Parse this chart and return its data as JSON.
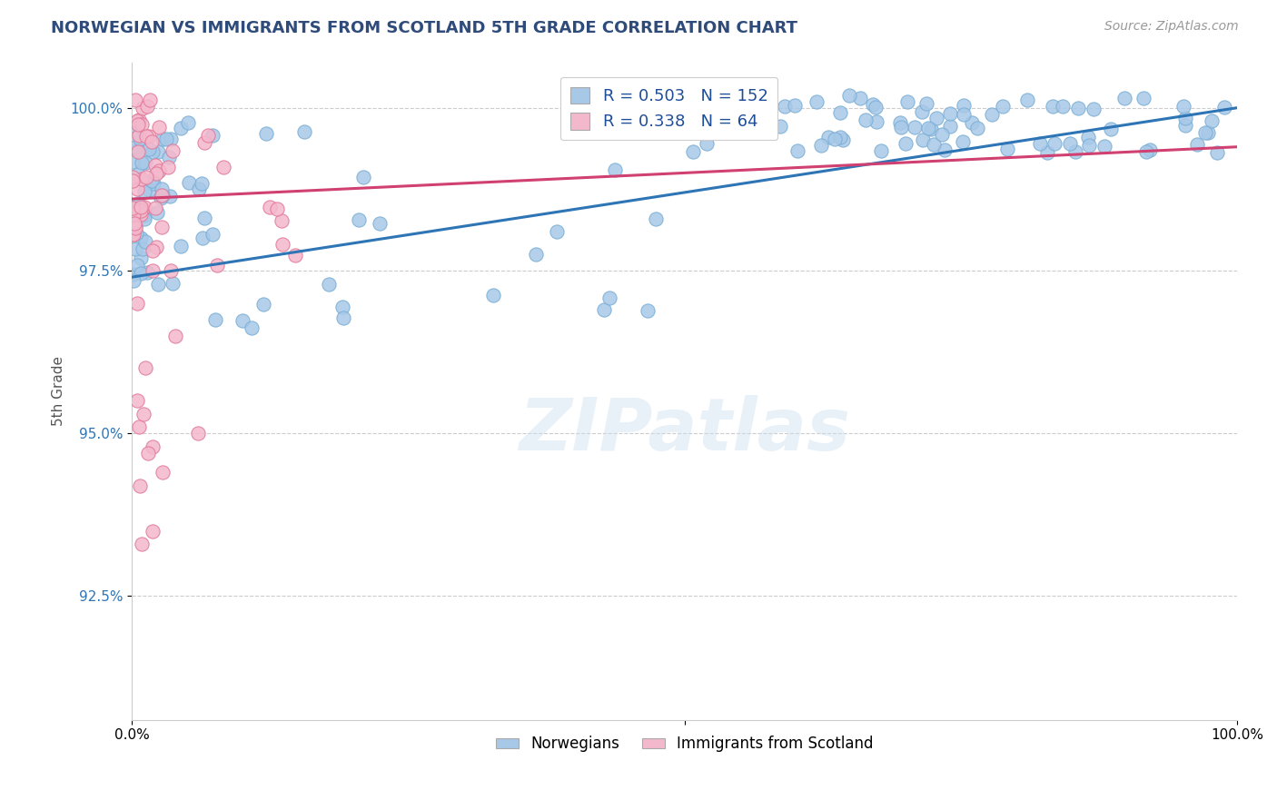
{
  "title": "NORWEGIAN VS IMMIGRANTS FROM SCOTLAND 5TH GRADE CORRELATION CHART",
  "source": "Source: ZipAtlas.com",
  "ylabel": "5th Grade",
  "watermark": "ZIPatlas",
  "legend_blue": {
    "R": 0.503,
    "N": 152
  },
  "legend_pink": {
    "R": 0.338,
    "N": 64
  },
  "blue_color": "#a8c8e8",
  "blue_edge_color": "#7aaed4",
  "blue_line_color": "#2e75b6",
  "pink_color": "#f4b8cc",
  "pink_edge_color": "#e07898",
  "pink_line_color": "#d04070",
  "title_color": "#2e4b7a",
  "source_color": "#999999",
  "ylabel_color": "#555555",
  "legend_r_color": "#1f4e99",
  "background_color": "#ffffff",
  "grid_color": "#cccccc",
  "xlim": [
    0.0,
    1.0
  ],
  "ylim": [
    0.906,
    1.007
  ],
  "yticks": [
    0.925,
    0.95,
    0.975,
    1.0
  ],
  "ytick_labels": [
    "92.5%",
    "95.0%",
    "97.5%",
    "100.0%"
  ],
  "dot_size": 120
}
